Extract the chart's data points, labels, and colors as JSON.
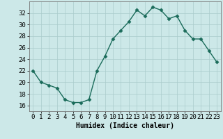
{
  "x": [
    0,
    1,
    2,
    3,
    4,
    5,
    6,
    7,
    8,
    9,
    10,
    11,
    12,
    13,
    14,
    15,
    16,
    17,
    18,
    19,
    20,
    21,
    22,
    23
  ],
  "y": [
    22,
    20,
    19.5,
    19,
    17,
    16.5,
    16.5,
    17,
    22,
    24.5,
    27.5,
    29,
    30.5,
    32.5,
    31.5,
    33,
    32.5,
    31,
    31.5,
    29,
    27.5,
    27.5,
    25.5,
    23.5
  ],
  "line_color": "#1a6b5a",
  "marker_color": "#1a6b5a",
  "bg_color": "#cce8e8",
  "grid_color": "#aacccc",
  "xlabel": "Humidex (Indice chaleur)",
  "ylim": [
    15,
    34
  ],
  "xlim": [
    -0.5,
    23.5
  ],
  "yticks": [
    16,
    18,
    20,
    22,
    24,
    26,
    28,
    30,
    32
  ],
  "xticks": [
    0,
    1,
    2,
    3,
    4,
    5,
    6,
    7,
    8,
    9,
    10,
    11,
    12,
    13,
    14,
    15,
    16,
    17,
    18,
    19,
    20,
    21,
    22,
    23
  ],
  "xtick_labels": [
    "0",
    "1",
    "2",
    "3",
    "4",
    "5",
    "6",
    "7",
    "8",
    "9",
    "10",
    "11",
    "12",
    "13",
    "14",
    "15",
    "16",
    "17",
    "18",
    "19",
    "20",
    "21",
    "22",
    "23"
  ],
  "font_size": 6.5,
  "marker_size": 2.5,
  "line_width": 1.0
}
